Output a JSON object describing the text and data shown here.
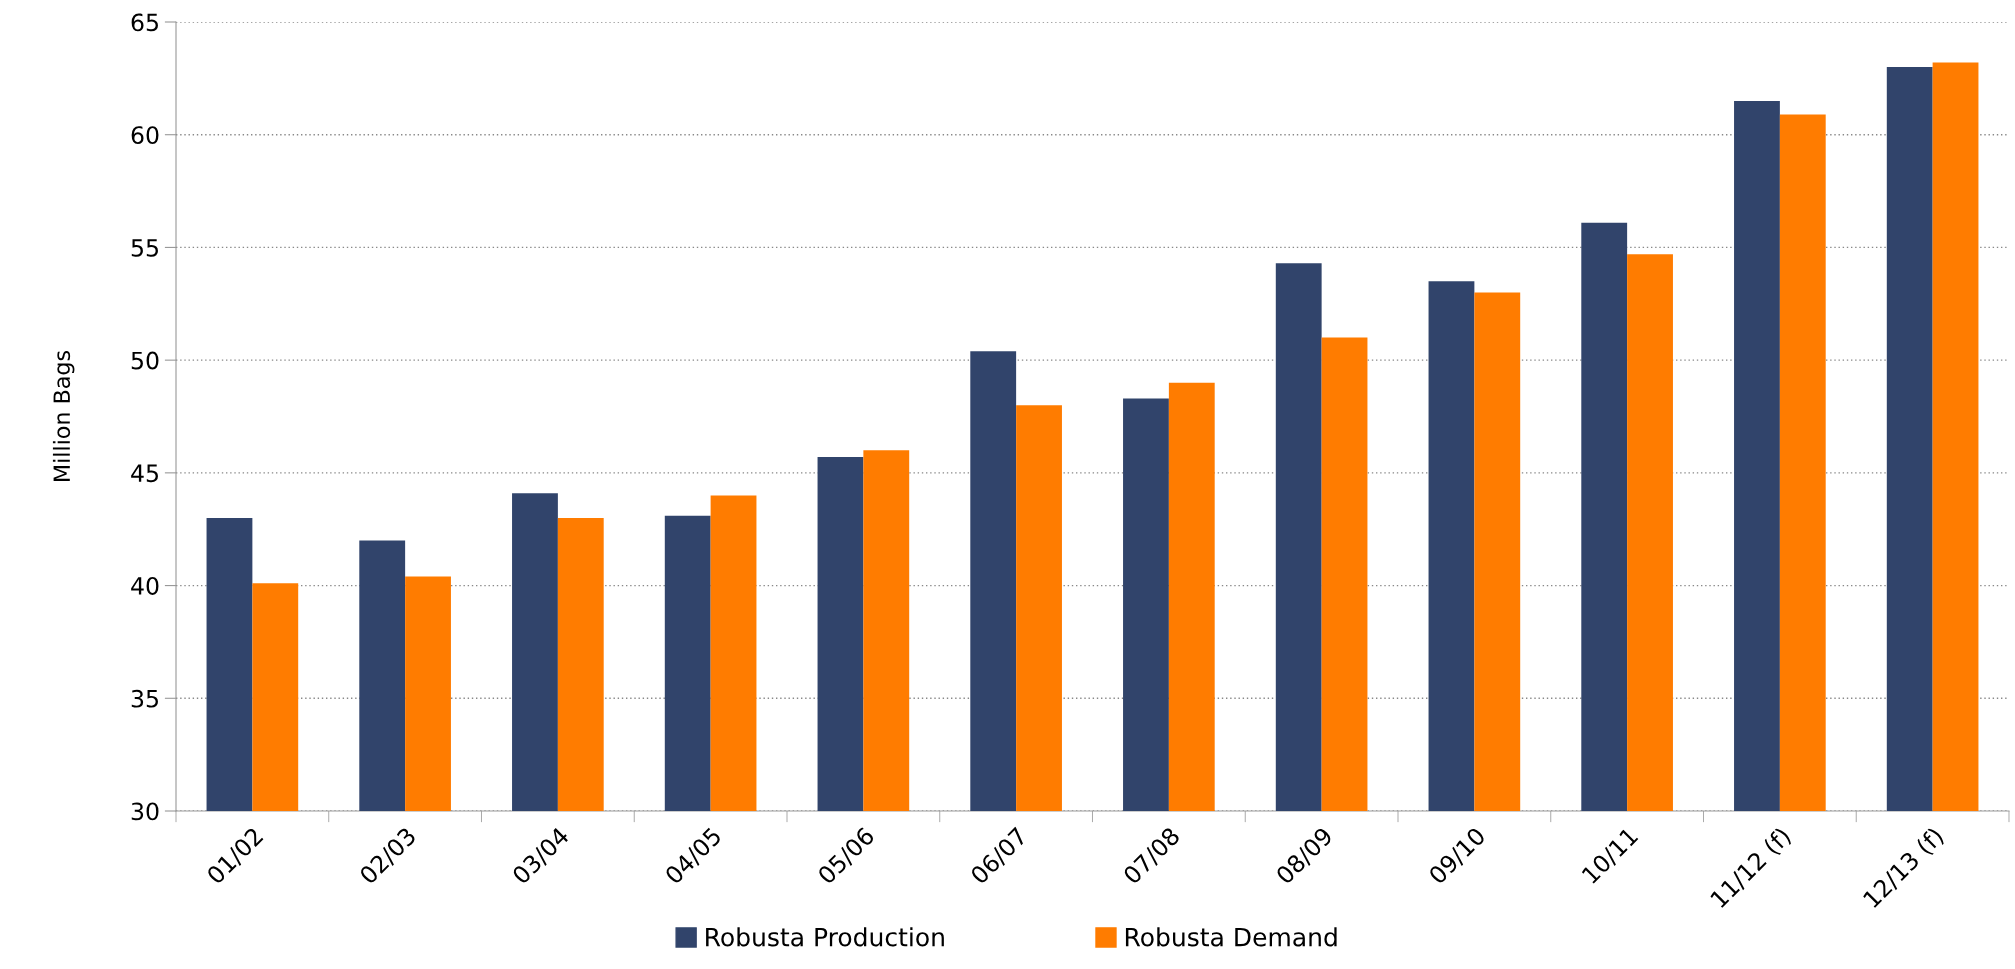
{
  "chart_data": {
    "type": "bar",
    "ylabel": "Million Bags",
    "categories": [
      "01/02",
      "02/03",
      "03/04",
      "04/05",
      "05/06",
      "06/07",
      "07/08",
      "08/09",
      "09/10",
      "10/11",
      "11/12 (f)",
      "12/13 (f)"
    ],
    "series": [
      {
        "name": "Robusta Production",
        "color": "#31446b",
        "values": [
          43.0,
          42.0,
          44.1,
          43.1,
          45.7,
          50.4,
          48.3,
          54.3,
          53.5,
          56.1,
          61.5,
          63.0
        ]
      },
      {
        "name": "Robusta Demand",
        "color": "#ff7c00",
        "values": [
          40.1,
          40.4,
          43.0,
          44.0,
          46.0,
          48.0,
          49.0,
          51.0,
          53.0,
          54.7,
          60.9,
          63.2
        ]
      }
    ],
    "ylim": [
      30,
      65
    ],
    "yticks": [
      30,
      35,
      40,
      45,
      50,
      55,
      60,
      65
    ],
    "grid": "y",
    "legend": "bottom"
  }
}
